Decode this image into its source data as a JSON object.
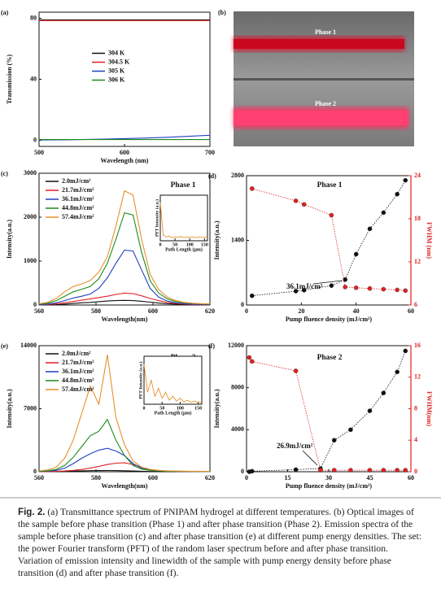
{
  "chart_data": [
    {
      "type": "line",
      "panel": "(a)",
      "xlabel": "Wavelength (nm)",
      "ylabel": "Transmission (%)",
      "legend": "center",
      "x": [
        500,
        525,
        550,
        575,
        600,
        625,
        650,
        675,
        700
      ],
      "xlim": [
        500,
        700
      ],
      "xticks": [
        500,
        600,
        700
      ],
      "ylim": [
        -4,
        84
      ],
      "yticks": [
        0,
        40,
        80
      ],
      "series": [
        {
          "name": "304 K",
          "color": "#111111",
          "values": [
            79,
            79,
            79,
            79,
            79,
            79,
            79,
            79,
            79
          ]
        },
        {
          "name": "304.5 K",
          "color": "#e02020",
          "values": [
            78.5,
            78.5,
            78.5,
            78.5,
            78.5,
            78.5,
            78.5,
            78.5,
            78.5
          ]
        },
        {
          "name": "305 K",
          "color": "#2040c0",
          "values": [
            0.2,
            0.3,
            0.5,
            0.8,
            1.1,
            1.5,
            2,
            2.6,
            3.3
          ]
        },
        {
          "name": "306 K",
          "color": "#1a8a1a",
          "values": [
            0.5,
            0.5,
            0.5,
            0.5,
            0.5,
            0.5,
            0.5,
            0.5,
            0.5
          ]
        }
      ]
    },
    {
      "type": "line",
      "panel": "(c)",
      "xlabel": "Wavelength(nm)",
      "ylabel": "Intensity(a.u.)",
      "legend": "upper left",
      "phase": "Phase 1",
      "x": [
        560,
        563,
        566,
        569,
        572,
        575,
        578,
        581,
        584,
        587,
        590,
        593,
        596,
        599,
        602,
        605,
        608,
        611,
        614,
        617,
        620
      ],
      "xlim": [
        560,
        620
      ],
      "xticks": [
        560,
        580,
        600,
        620
      ],
      "ylim": [
        0,
        3000
      ],
      "yticks": [
        0,
        1000,
        2000,
        3000
      ],
      "series": [
        {
          "name": "2.0mJ/cm²",
          "color": "#111111",
          "values": [
            3,
            5,
            10,
            20,
            35,
            50,
            60,
            75,
            90,
            100,
            105,
            100,
            85,
            65,
            45,
            30,
            20,
            12,
            8,
            5,
            3
          ]
        },
        {
          "name": "21.7mJ/cm²",
          "color": "#e02020",
          "values": [
            5,
            10,
            25,
            50,
            80,
            110,
            140,
            170,
            200,
            240,
            270,
            260,
            210,
            150,
            100,
            60,
            35,
            20,
            12,
            8,
            5
          ]
        },
        {
          "name": "36.1mJ/cm²",
          "color": "#2040c0",
          "values": [
            10,
            20,
            50,
            100,
            160,
            200,
            250,
            380,
            620,
            950,
            1250,
            1230,
            800,
            380,
            180,
            90,
            50,
            30,
            20,
            15,
            12
          ]
        },
        {
          "name": "44.8mJ/cm²",
          "color": "#1a8a1a",
          "values": [
            20,
            40,
            100,
            200,
            300,
            360,
            420,
            600,
            950,
            1500,
            2100,
            2050,
            1200,
            550,
            270,
            140,
            80,
            50,
            35,
            25,
            20
          ]
        },
        {
          "name": "57.4mJ/cm²",
          "color": "#e8902a",
          "values": [
            30,
            60,
            150,
            300,
            420,
            480,
            560,
            750,
            1100,
            1800,
            2600,
            2500,
            1500,
            700,
            350,
            180,
            100,
            60,
            40,
            30,
            25
          ]
        }
      ],
      "inset": {
        "type": "line",
        "xlabel": "Path Length (μm)",
        "ylabel": "PFT Intensity (a.u.)",
        "color": "#e8902a",
        "x": [
          0,
          10,
          20,
          30,
          40,
          50,
          60,
          70,
          80,
          90,
          100,
          110,
          120,
          130,
          140,
          150,
          160
        ],
        "values": [
          1,
          0.15,
          0.1,
          0.12,
          0.08,
          0.1,
          0.09,
          0.11,
          0.08,
          0.1,
          0.09,
          0.1,
          0.08,
          0.1,
          0.09,
          0.1,
          0.08
        ],
        "xlim": [
          0,
          160
        ],
        "xticks": [
          0,
          50,
          100,
          150
        ],
        "ylim": [
          0,
          1.2
        ]
      }
    },
    {
      "type": "scatter",
      "panel": "(d)",
      "xlabel": "Pump fluence density (mJ/cm²)",
      "ylabel": "Intensity(a.u.)",
      "y2label": "FWHM (nm)",
      "y2color": "#e02020",
      "phase": "Phase 1",
      "annotation": "36.1mJ/cm²",
      "xlim": [
        0,
        60
      ],
      "xticks": [
        0,
        20,
        40,
        60
      ],
      "ylim": [
        0,
        2800
      ],
      "yticks": [
        0,
        1400,
        2800
      ],
      "y2lim": [
        6,
        24
      ],
      "y2ticks": [
        6,
        12,
        18,
        24
      ],
      "series": [
        {
          "color": "#111111",
          "x": [
            2,
            18,
            21,
            31,
            36,
            40,
            45,
            50,
            55,
            58
          ],
          "values": [
            200,
            300,
            320,
            420,
            550,
            1100,
            1650,
            2000,
            2400,
            2700
          ]
        },
        {
          "color": "#e02020",
          "axis": "y2",
          "x": [
            2,
            18,
            21,
            31,
            36,
            40,
            45,
            50,
            55,
            58
          ],
          "values": [
            22.2,
            20.5,
            20,
            18.5,
            8.5,
            8.4,
            8.3,
            8.2,
            8.1,
            8
          ]
        }
      ]
    },
    {
      "type": "line",
      "panel": "(e)",
      "xlabel": "Wavelength(nm)",
      "ylabel": "Intensity(a.u.)",
      "legend": "upper left",
      "phase": "Phase 2",
      "x": [
        560,
        563,
        566,
        569,
        572,
        575,
        578,
        581,
        584,
        587,
        590,
        593,
        596,
        599,
        602,
        605,
        608,
        611,
        614,
        617,
        620
      ],
      "xlim": [
        560,
        620
      ],
      "xticks": [
        560,
        580,
        600,
        620
      ],
      "ylim": [
        0,
        14000
      ],
      "yticks": [
        0,
        7000,
        14000
      ],
      "series": [
        {
          "name": "2.0mJ/cm²",
          "color": "#111111",
          "values": [
            5,
            10,
            20,
            40,
            70,
            100,
            120,
            130,
            140,
            130,
            110,
            80,
            50,
            30,
            20,
            12,
            8,
            5,
            4,
            3,
            2
          ]
        },
        {
          "name": "21.7mJ/cm²",
          "color": "#e02020",
          "values": [
            10,
            20,
            40,
            80,
            150,
            250,
            400,
            600,
            800,
            950,
            1000,
            800,
            500,
            250,
            120,
            70,
            40,
            25,
            15,
            10,
            8
          ]
        },
        {
          "name": "36.1mJ/cm²",
          "color": "#2040c0",
          "values": [
            30,
            60,
            150,
            400,
            900,
            1500,
            2000,
            2400,
            2600,
            2300,
            1800,
            900,
            400,
            200,
            100,
            60,
            40,
            30,
            22,
            18,
            15
          ]
        },
        {
          "name": "44.8mJ/cm²",
          "color": "#1a8a1a",
          "values": [
            50,
            100,
            250,
            700,
            1600,
            2800,
            4000,
            4500,
            5800,
            3500,
            1800,
            700,
            300,
            150,
            90,
            60,
            45,
            35,
            28,
            22,
            18
          ]
        },
        {
          "name": "57.4mJ/cm²",
          "color": "#e8902a",
          "values": [
            100,
            200,
            500,
            1500,
            3500,
            6500,
            9500,
            7500,
            13000,
            6000,
            3000,
            1200,
            500,
            250,
            150,
            100,
            80,
            60,
            50,
            40,
            30
          ]
        }
      ],
      "inset": {
        "type": "line",
        "xlabel": "Path Length (μm)",
        "ylabel": "PFT Intensity (a.u.)",
        "color": "#e8902a",
        "x": [
          0,
          10,
          20,
          30,
          40,
          50,
          60,
          70,
          80,
          90,
          100,
          110,
          120,
          130,
          140,
          150,
          160
        ],
        "values": [
          1,
          0.3,
          0.6,
          0.2,
          0.4,
          0.15,
          0.3,
          0.1,
          0.2,
          0.08,
          0.15,
          0.06,
          0.1,
          0.05,
          0.08,
          0.04,
          0.05
        ],
        "xlim": [
          0,
          160
        ],
        "xticks": [
          0,
          50,
          100,
          150
        ],
        "ylim": [
          0,
          1.2
        ]
      }
    },
    {
      "type": "scatter",
      "panel": "(f)",
      "xlabel": "Pump fluence density (mJ/cm²)",
      "ylabel": "Intensity(a.u.)",
      "y2label": "FWHM(nm)",
      "y2color": "#e02020",
      "phase": "Phase 2",
      "annotation": "26.9mJ/cm²",
      "xlim": [
        0,
        60
      ],
      "xticks": [
        0,
        15,
        30,
        45,
        60
      ],
      "ylim": [
        0,
        12000
      ],
      "yticks": [
        0,
        4000,
        8000,
        12000
      ],
      "y2lim": [
        0,
        16
      ],
      "y2ticks": [
        0,
        4,
        8,
        12,
        16
      ],
      "series": [
        {
          "color": "#111111",
          "x": [
            1,
            2,
            18,
            27,
            32,
            38,
            45,
            50,
            55,
            58
          ],
          "values": [
            0,
            50,
            200,
            300,
            3000,
            4000,
            5800,
            7500,
            9500,
            11500
          ]
        },
        {
          "color": "#e02020",
          "axis": "y2",
          "x": [
            1,
            2,
            18,
            27,
            32,
            38,
            45,
            50,
            55,
            58
          ],
          "values": [
            14.5,
            14,
            12.8,
            0.2,
            0.2,
            0.2,
            0.2,
            0.2,
            0.2,
            0.2
          ]
        }
      ]
    }
  ],
  "photo": {
    "panel": "(b)",
    "labels": [
      "Phase 1",
      "Phase 2"
    ]
  },
  "caption": {
    "label": "Fig. 2.",
    "text": "(a) Transmittance spectrum of PNIPAM hydrogel at different temperatures. (b) Optical images of the sample before phase transition (Phase 1) and after phase transition (Phase 2). Emission spectra of the sample before phase transition (c) and after phase transition (e) at different pump energy densities. The set: the power Fourier transform (PFT) of the random laser spectrum before and after phase transition. Variation of emission intensity and linewidth of the sample with pump energy density before phase transition (d) and after phase transition (f)."
  }
}
